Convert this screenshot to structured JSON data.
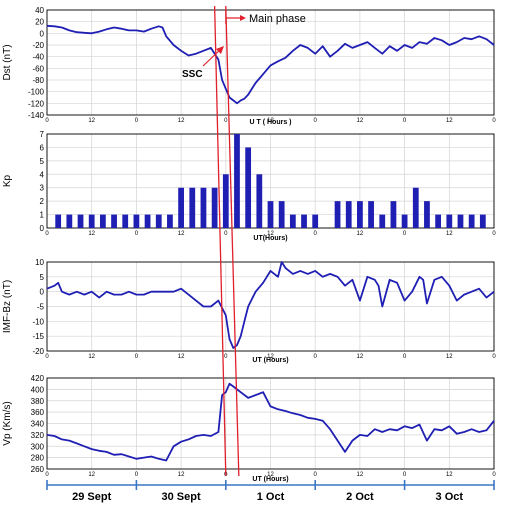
{
  "colors": {
    "series": "#1f1fb4",
    "marker": "#e0202c",
    "axis": "#000000",
    "grid": "#d4d4d4",
    "days": "#3b76c4"
  },
  "annotations": {
    "main_phase": "Main phase",
    "ssc": "SSC"
  },
  "days": [
    "29 Sept",
    "30 Sept",
    "1 Oct",
    "2 Oct",
    "3 Oct"
  ],
  "chart_data": [
    {
      "type": "line",
      "ylabel": "Dst (nT)",
      "xlabel": "U T ( Hours )",
      "ylim": [
        -140,
        40
      ],
      "yticks": [
        40,
        20,
        0,
        -20,
        -40,
        -60,
        -80,
        -100,
        -120,
        -140
      ],
      "xlim": [
        0,
        120
      ],
      "xticks": [
        0,
        12,
        0,
        12,
        0,
        12,
        0,
        12,
        0,
        12,
        0
      ],
      "grid": true,
      "x": [
        0,
        2,
        4,
        6,
        8,
        10,
        12,
        14,
        16,
        18,
        20,
        22,
        24,
        26,
        28,
        30,
        31,
        32,
        34,
        36,
        38,
        40,
        42,
        44,
        46,
        47,
        48,
        49,
        50,
        51,
        52,
        53,
        54,
        56,
        58,
        60,
        62,
        64,
        66,
        68,
        70,
        72,
        74,
        76,
        78,
        80,
        82,
        84,
        86,
        88,
        90,
        92,
        94,
        96,
        98,
        100,
        102,
        104,
        106,
        108,
        110,
        112,
        114,
        116,
        118,
        120
      ],
      "values": [
        13,
        12,
        10,
        5,
        2,
        1,
        0,
        3,
        7,
        10,
        8,
        5,
        5,
        3,
        8,
        12,
        10,
        -5,
        -20,
        -30,
        -38,
        -35,
        -30,
        -25,
        -45,
        -80,
        -95,
        -110,
        -115,
        -120,
        -115,
        -112,
        -105,
        -85,
        -70,
        -55,
        -48,
        -42,
        -30,
        -20,
        -25,
        -35,
        -22,
        -40,
        -30,
        -18,
        -25,
        -20,
        -15,
        -25,
        -35,
        -22,
        -30,
        -20,
        -25,
        -15,
        -18,
        -8,
        -12,
        -20,
        -15,
        -8,
        -10,
        -5,
        -10,
        -20
      ]
    },
    {
      "type": "bar",
      "ylabel": "Kp",
      "xlabel": "UT(Hours)",
      "ylim": [
        0,
        7
      ],
      "yticks": [
        7,
        6,
        5,
        4,
        3,
        2,
        1,
        0
      ],
      "xlim": [
        0,
        120
      ],
      "xticks": [
        0,
        12,
        0,
        12,
        0,
        12,
        0,
        12,
        0,
        12,
        0
      ],
      "grid": true,
      "x": [
        3,
        6,
        9,
        12,
        15,
        18,
        21,
        24,
        27,
        30,
        33,
        36,
        39,
        42,
        45,
        48,
        51,
        54,
        57,
        60,
        63,
        66,
        69,
        72,
        78,
        81,
        84,
        87,
        90,
        93,
        96,
        99,
        102,
        105,
        108,
        111,
        114,
        117
      ],
      "values": [
        1,
        1,
        1,
        1,
        1,
        1,
        1,
        1,
        1,
        1,
        1,
        3,
        3,
        3,
        3,
        4,
        7,
        6,
        4,
        2,
        2,
        1,
        1,
        1,
        2,
        2,
        2,
        2,
        1,
        2,
        1,
        3,
        2,
        1,
        1,
        1,
        1,
        1
      ]
    },
    {
      "type": "line",
      "ylabel": "IMF-Bz (nT)",
      "xlabel": "UT (Hours)",
      "ylim": [
        -20,
        10
      ],
      "yticks": [
        10,
        5,
        0,
        -5,
        -10,
        -15,
        -20
      ],
      "xlim": [
        0,
        120
      ],
      "xticks": [
        0,
        12,
        0,
        12,
        0,
        12,
        0,
        12,
        0,
        12,
        0
      ],
      "grid": true,
      "x": [
        0,
        2,
        3,
        4,
        6,
        8,
        10,
        12,
        14,
        16,
        18,
        20,
        22,
        24,
        26,
        28,
        30,
        32,
        34,
        36,
        38,
        40,
        42,
        44,
        46,
        48,
        49,
        50,
        51,
        52,
        53,
        54,
        56,
        58,
        60,
        62,
        63,
        64,
        66,
        68,
        70,
        72,
        74,
        76,
        78,
        80,
        82,
        84,
        86,
        88,
        89,
        90,
        92,
        94,
        96,
        98,
        100,
        101,
        102,
        104,
        106,
        108,
        110,
        112,
        114,
        116,
        118,
        120
      ],
      "values": [
        1,
        2,
        3,
        0,
        -1,
        0,
        -1,
        0,
        -2,
        0,
        -1,
        -1,
        0,
        -1,
        -1,
        0,
        0,
        0,
        0,
        1,
        -1,
        -3,
        -5,
        -5,
        -3,
        -8,
        -16,
        -19,
        -18,
        -15,
        -10,
        -5,
        0,
        3,
        7,
        5,
        10,
        8,
        6,
        7,
        6,
        7,
        5,
        6,
        5,
        2,
        4,
        -3,
        5,
        4,
        2,
        -5,
        4,
        3,
        -3,
        0,
        5,
        4,
        -4,
        4,
        5,
        2,
        -3,
        -1,
        0,
        1,
        -2,
        0
      ]
    },
    {
      "type": "line",
      "ylabel": "Vp (Km/s)",
      "xlabel": "UT (Hours)",
      "ylim": [
        260,
        420
      ],
      "yticks": [
        420,
        400,
        380,
        360,
        340,
        320,
        300,
        280,
        260
      ],
      "xlim": [
        0,
        120
      ],
      "xticks": [
        0,
        12,
        0,
        12,
        0,
        12,
        0,
        12,
        0,
        12,
        0
      ],
      "grid": true,
      "x": [
        0,
        2,
        4,
        6,
        8,
        10,
        12,
        14,
        16,
        18,
        20,
        22,
        24,
        26,
        28,
        30,
        32,
        34,
        36,
        38,
        40,
        42,
        44,
        46,
        47,
        48,
        49,
        50,
        52,
        54,
        56,
        58,
        60,
        62,
        64,
        66,
        68,
        70,
        72,
        74,
        76,
        78,
        80,
        82,
        84,
        86,
        88,
        90,
        92,
        94,
        96,
        98,
        100,
        102,
        104,
        106,
        108,
        110,
        112,
        114,
        116,
        118,
        120
      ],
      "values": [
        320,
        318,
        312,
        310,
        305,
        300,
        295,
        292,
        290,
        285,
        286,
        282,
        278,
        280,
        282,
        278,
        275,
        300,
        308,
        312,
        318,
        320,
        318,
        325,
        390,
        395,
        410,
        405,
        395,
        385,
        390,
        395,
        370,
        365,
        362,
        358,
        355,
        350,
        348,
        345,
        330,
        310,
        290,
        310,
        320,
        318,
        330,
        325,
        330,
        328,
        335,
        332,
        338,
        310,
        330,
        328,
        335,
        322,
        325,
        330,
        325,
        328,
        345
      ]
    }
  ]
}
